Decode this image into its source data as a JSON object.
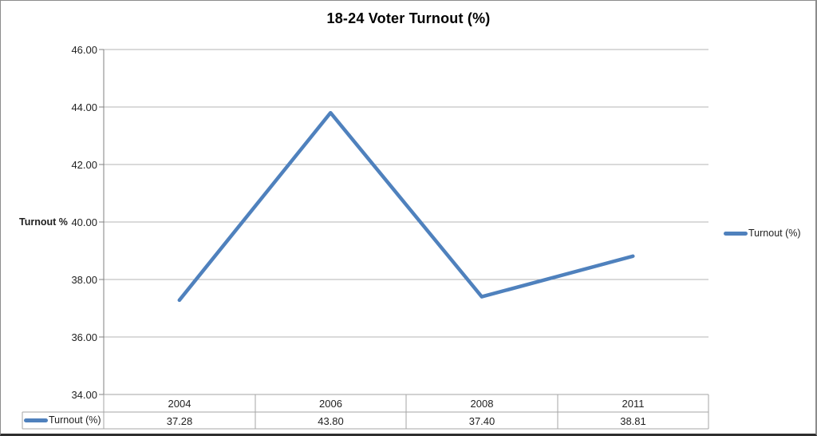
{
  "window": {
    "background": "#FFFFFF"
  },
  "colors": {
    "line": "#4F81BD",
    "gridline": "#B5B5B5",
    "axis": "#808080",
    "table_border": "#A6A6A6",
    "text": "#1F1F1F",
    "frame_border": "#8C8C8C"
  },
  "chart_data": {
    "type": "line",
    "title": "18-24 Voter Turnout (%)",
    "ylabel": "Turnout %",
    "xlabel": "",
    "categories": [
      "2004",
      "2006",
      "2008",
      "2011"
    ],
    "series": [
      {
        "name": "Turnout (%)",
        "values": [
          37.28,
          43.8,
          37.4,
          38.81
        ],
        "value_labels": [
          "37.28",
          "43.80",
          "37.40",
          "38.81"
        ]
      }
    ],
    "ylim": [
      34,
      46
    ],
    "ytick_step": 2,
    "ytick_labels": [
      "46.00",
      "44.00",
      "42.00",
      "40.00",
      "38.00",
      "36.00",
      "34.00"
    ],
    "grid": true,
    "legend_position": "right",
    "data_table_shown": true
  }
}
